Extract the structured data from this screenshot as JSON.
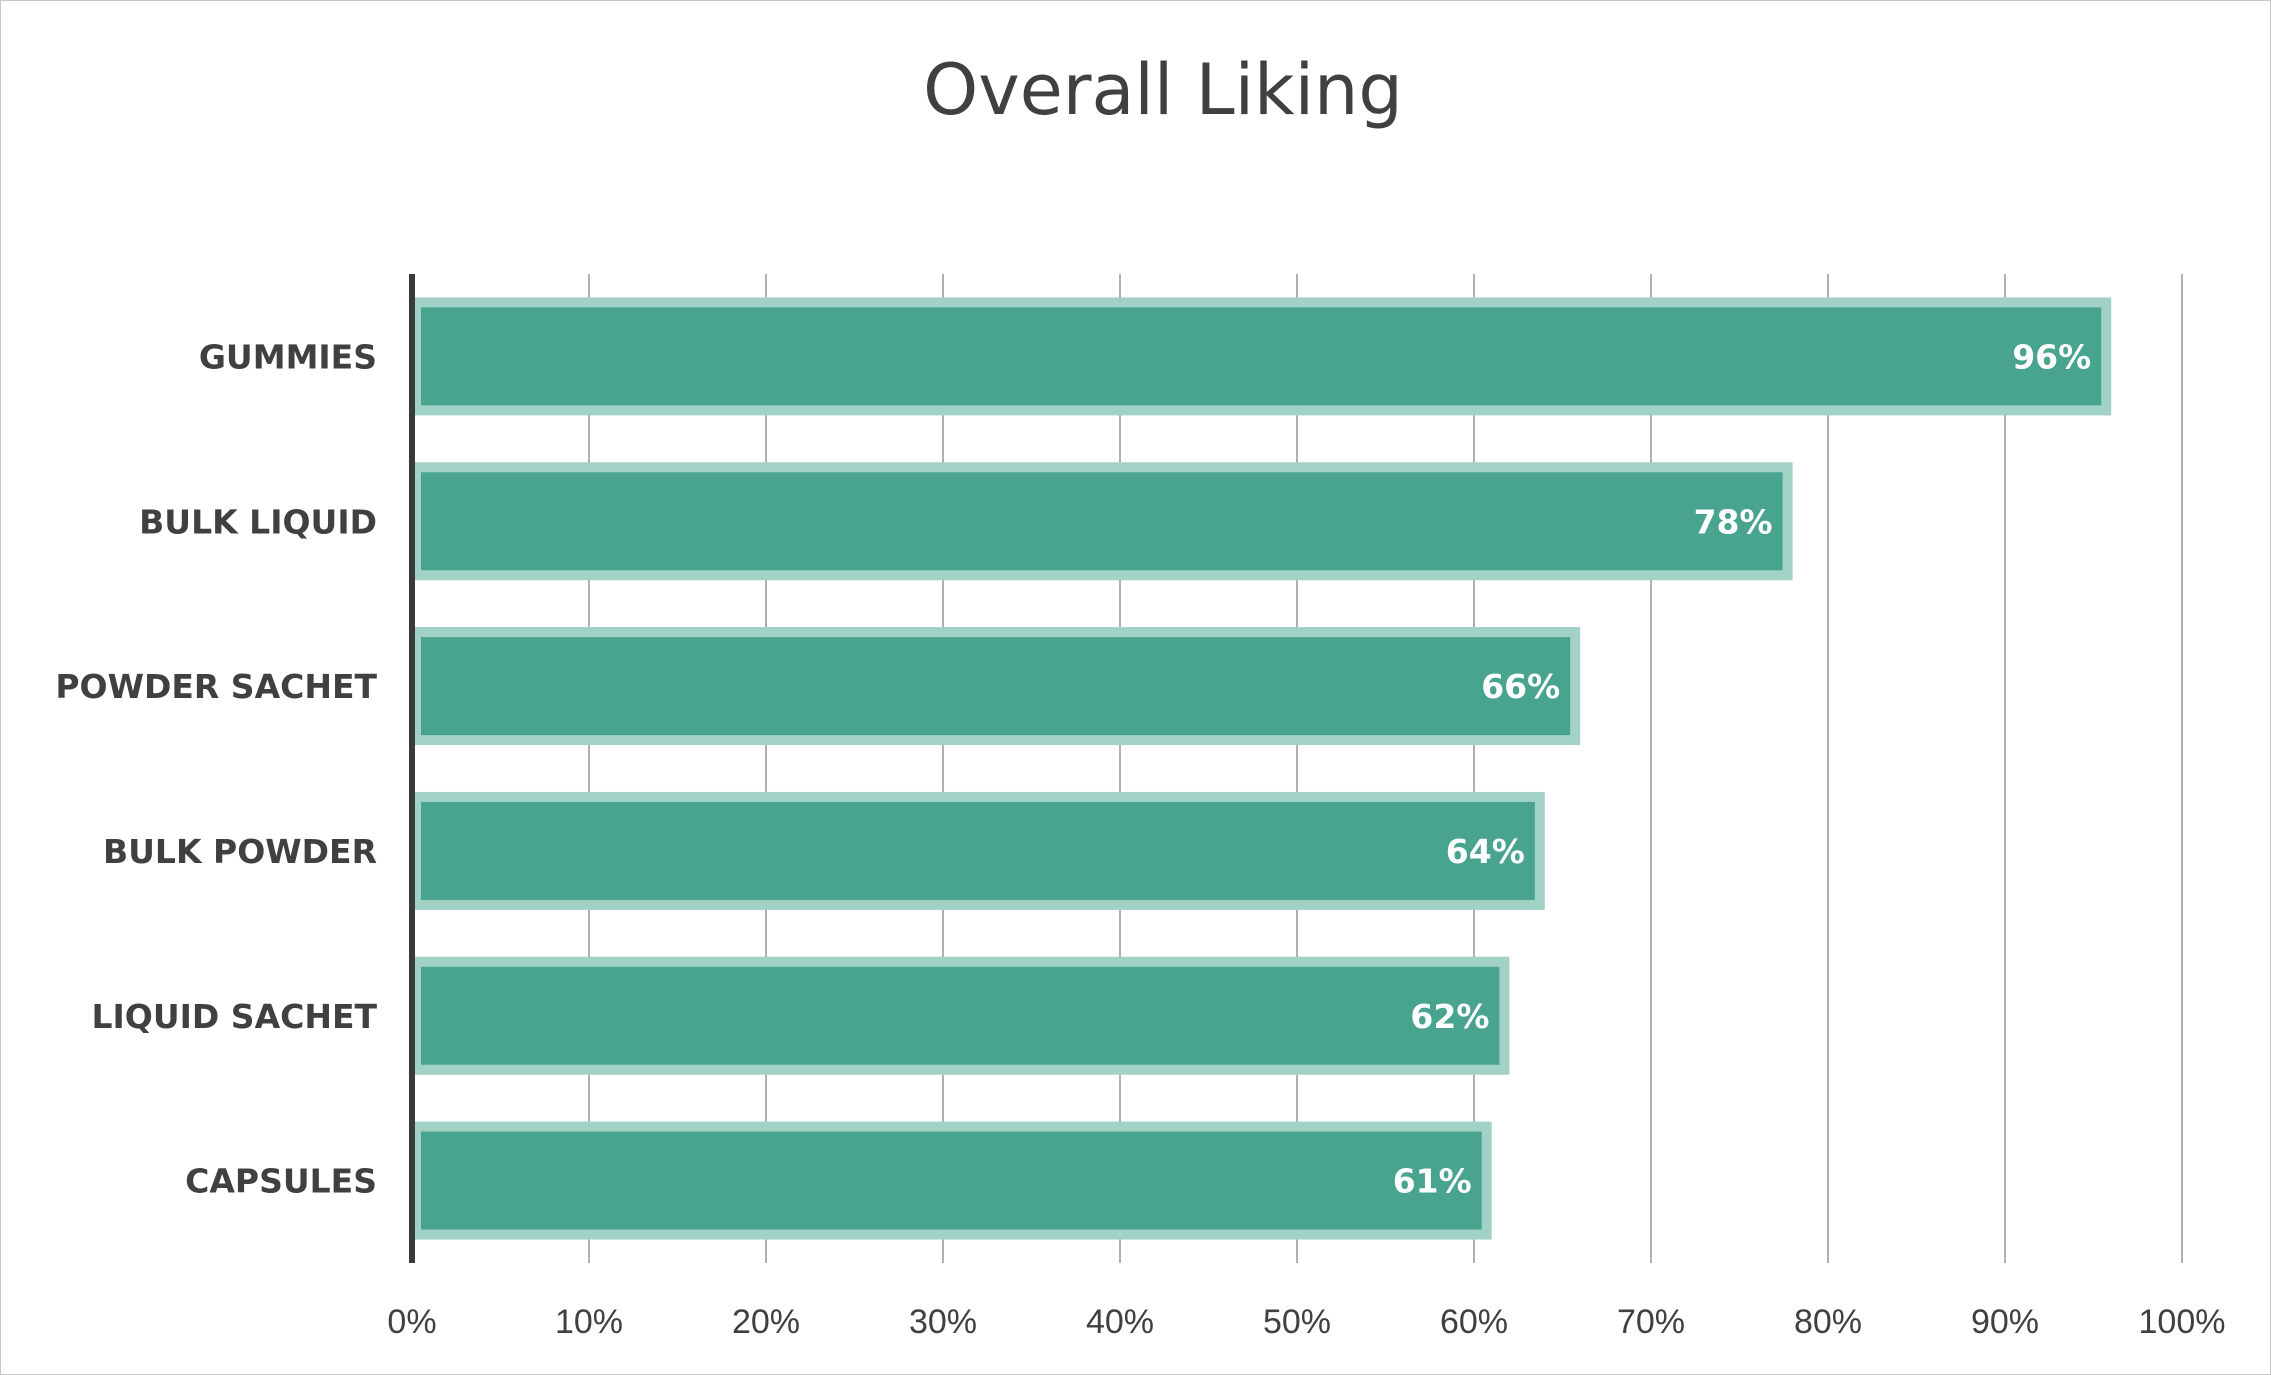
{
  "chart_data": {
    "type": "bar",
    "orientation": "horizontal",
    "title": "Overall Liking",
    "xlabel": "",
    "ylabel": "",
    "categories": [
      "GUMMIES",
      "BULK LIQUID",
      "POWDER SACHET",
      "BULK POWDER",
      "LIQUID SACHET",
      "CAPSULES"
    ],
    "values": [
      96,
      78,
      66,
      64,
      62,
      61
    ],
    "data_labels": [
      "96%",
      "78%",
      "66%",
      "64%",
      "62%",
      "61%"
    ],
    "xlim": [
      0,
      100
    ],
    "x_ticks": [
      "0%",
      "10%",
      "20%",
      "30%",
      "40%",
      "50%",
      "60%",
      "70%",
      "80%",
      "90%",
      "100%"
    ],
    "grid": true,
    "legend": "none",
    "colors": {
      "bar_fill": "#48a48f",
      "bar_border": "#a2d2c6",
      "grid": "#b0b0b0",
      "axis": "#3a3a3a",
      "text": "#404040",
      "label_text": "#ffffff"
    }
  }
}
